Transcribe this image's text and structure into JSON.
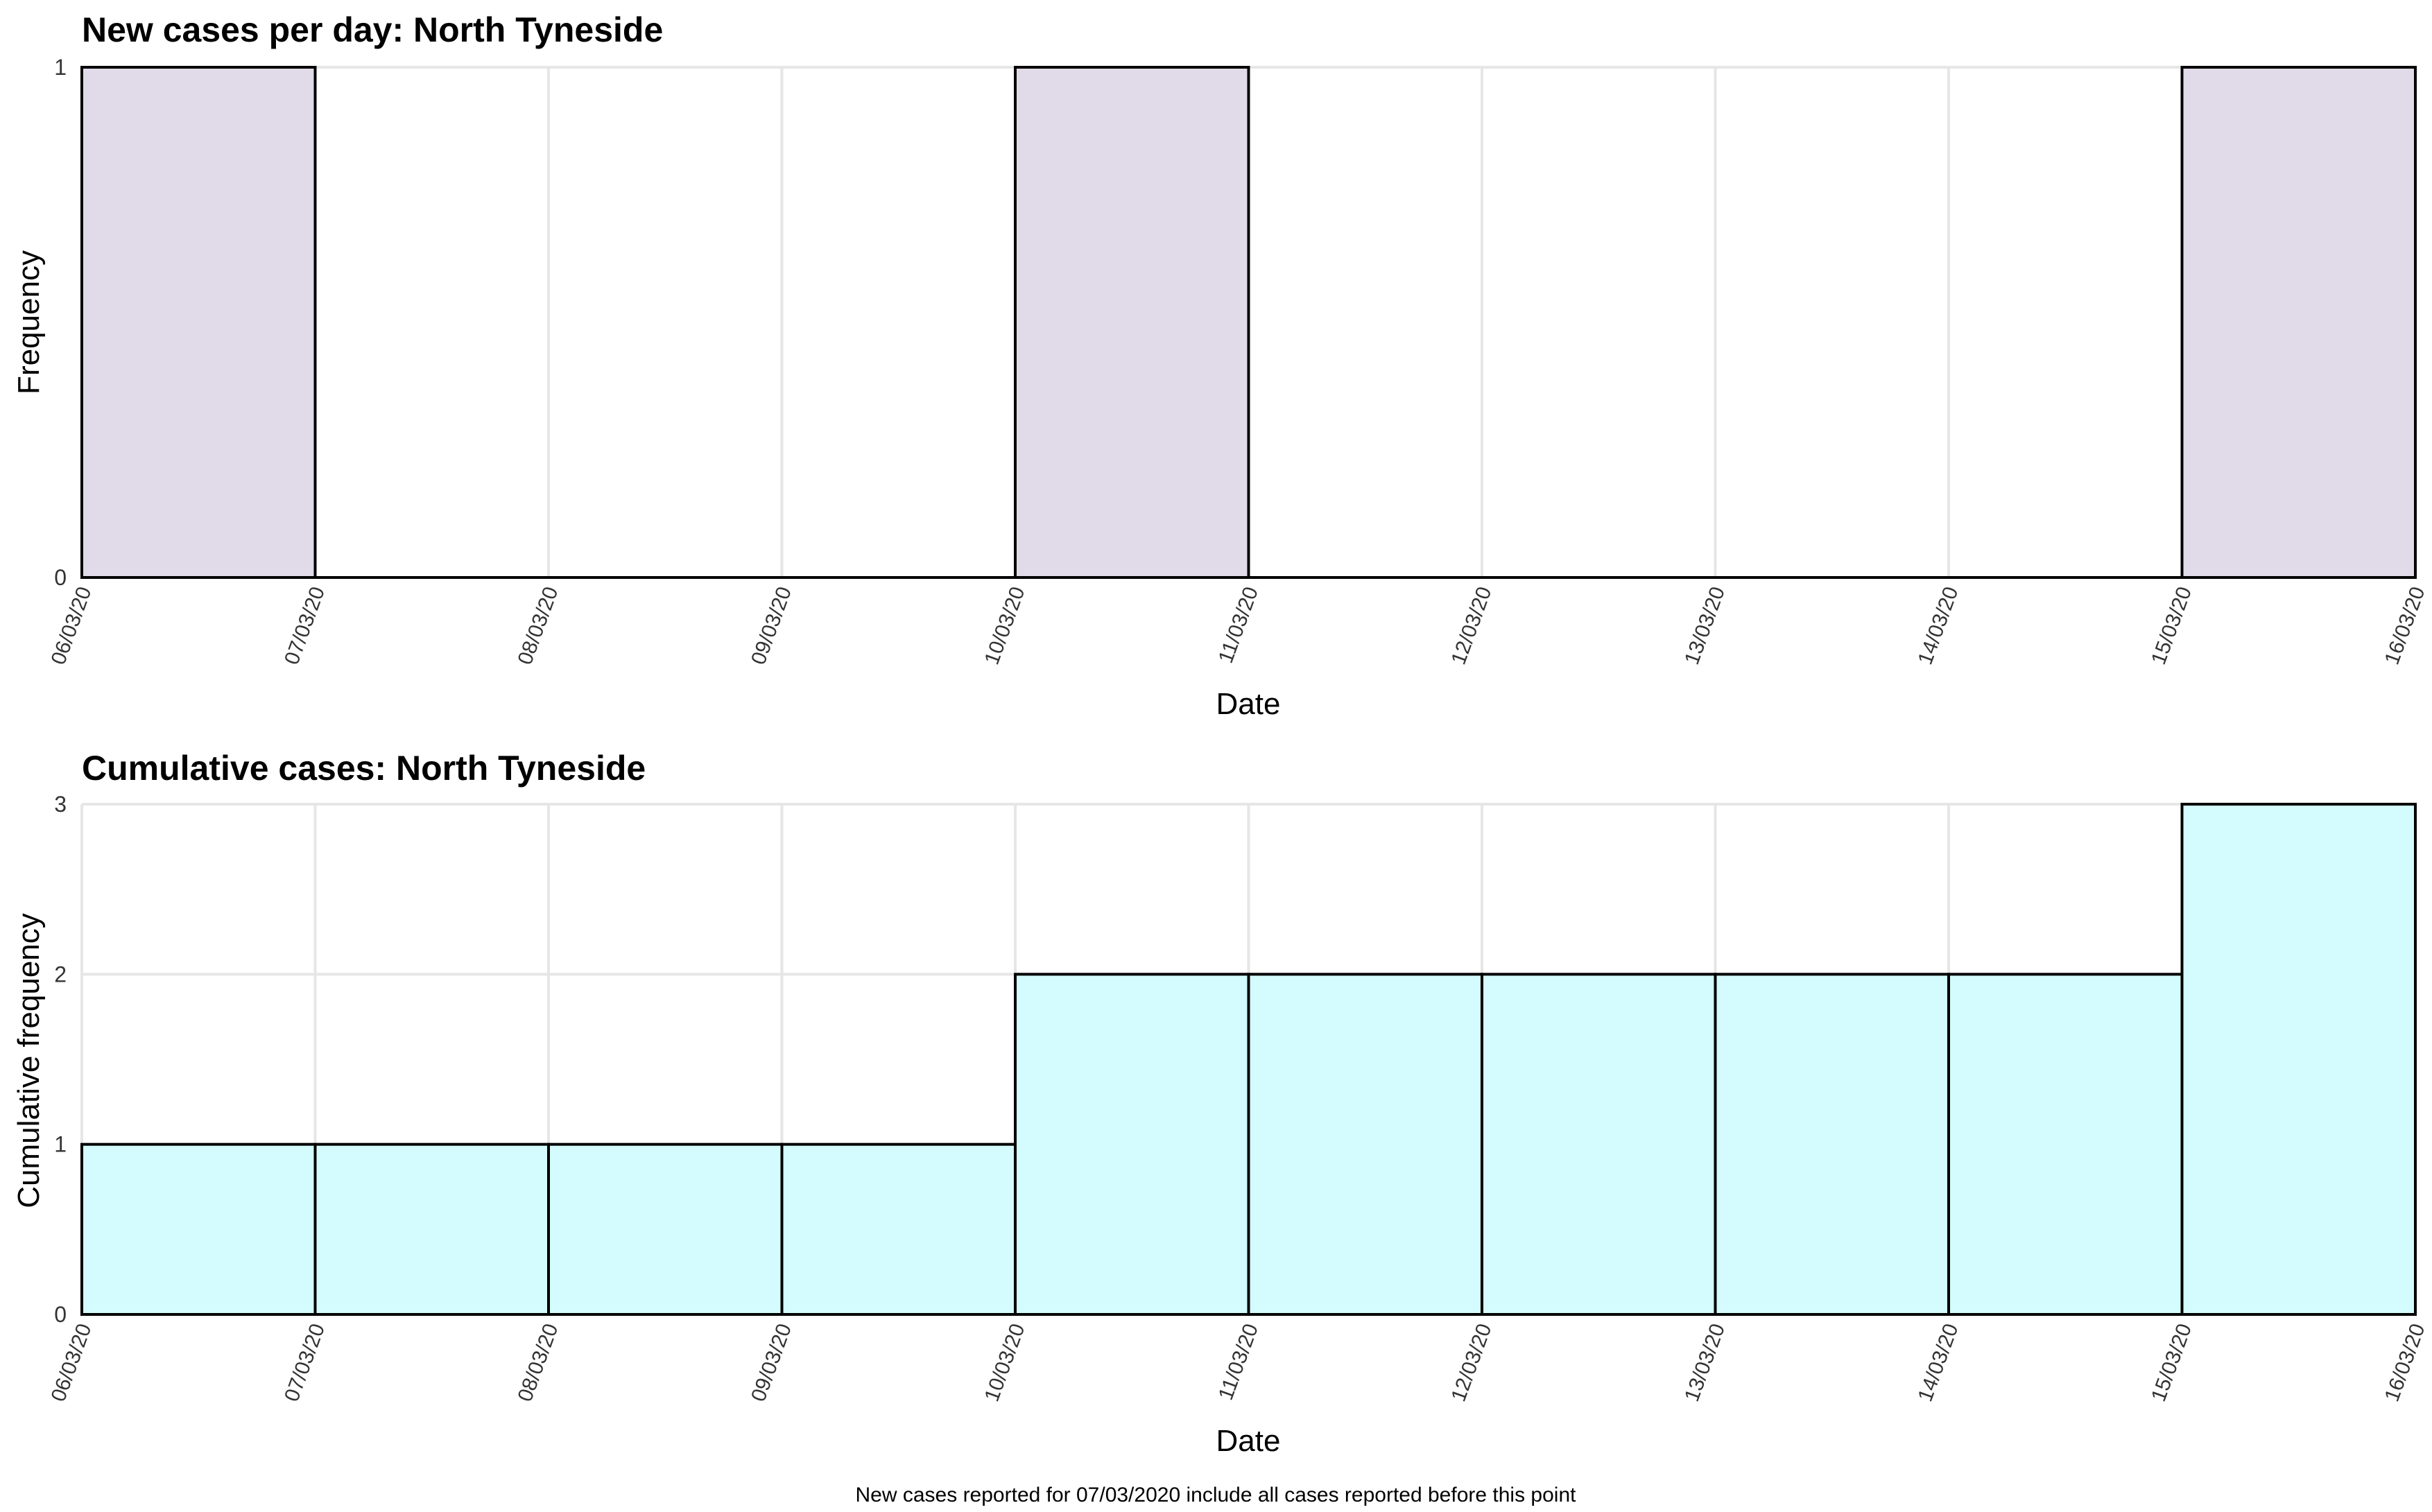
{
  "chart_data": [
    {
      "type": "bar",
      "title": "New cases per day: North Tyneside",
      "xlabel": "Date",
      "ylabel": "Frequency",
      "x_ticks": [
        "06/03/20",
        "07/03/20",
        "08/03/20",
        "09/03/20",
        "10/03/20",
        "11/03/20",
        "12/03/20",
        "13/03/20",
        "14/03/20",
        "15/03/20",
        "16/03/20"
      ],
      "y_ticks": [
        "0",
        "1"
      ],
      "ylim": [
        0,
        1
      ],
      "values": [
        1,
        0,
        0,
        0,
        1,
        0,
        0,
        0,
        0,
        1
      ],
      "bar_color": "#e0dae9",
      "grid": true
    },
    {
      "type": "bar",
      "title": "Cumulative cases: North Tyneside",
      "xlabel": "Date",
      "ylabel": "Cumulative frequency",
      "x_ticks": [
        "06/03/20",
        "07/03/20",
        "08/03/20",
        "09/03/20",
        "10/03/20",
        "11/03/20",
        "12/03/20",
        "13/03/20",
        "14/03/20",
        "15/03/20",
        "16/03/20"
      ],
      "y_ticks": [
        "0",
        "1",
        "2",
        "3"
      ],
      "ylim": [
        0,
        3
      ],
      "values": [
        1,
        1,
        1,
        1,
        2,
        2,
        2,
        2,
        2,
        3
      ],
      "bar_color": "#d4fbfd",
      "grid": true
    }
  ],
  "caption": "New cases reported for 07/03/2020 include all cases reported before this point"
}
